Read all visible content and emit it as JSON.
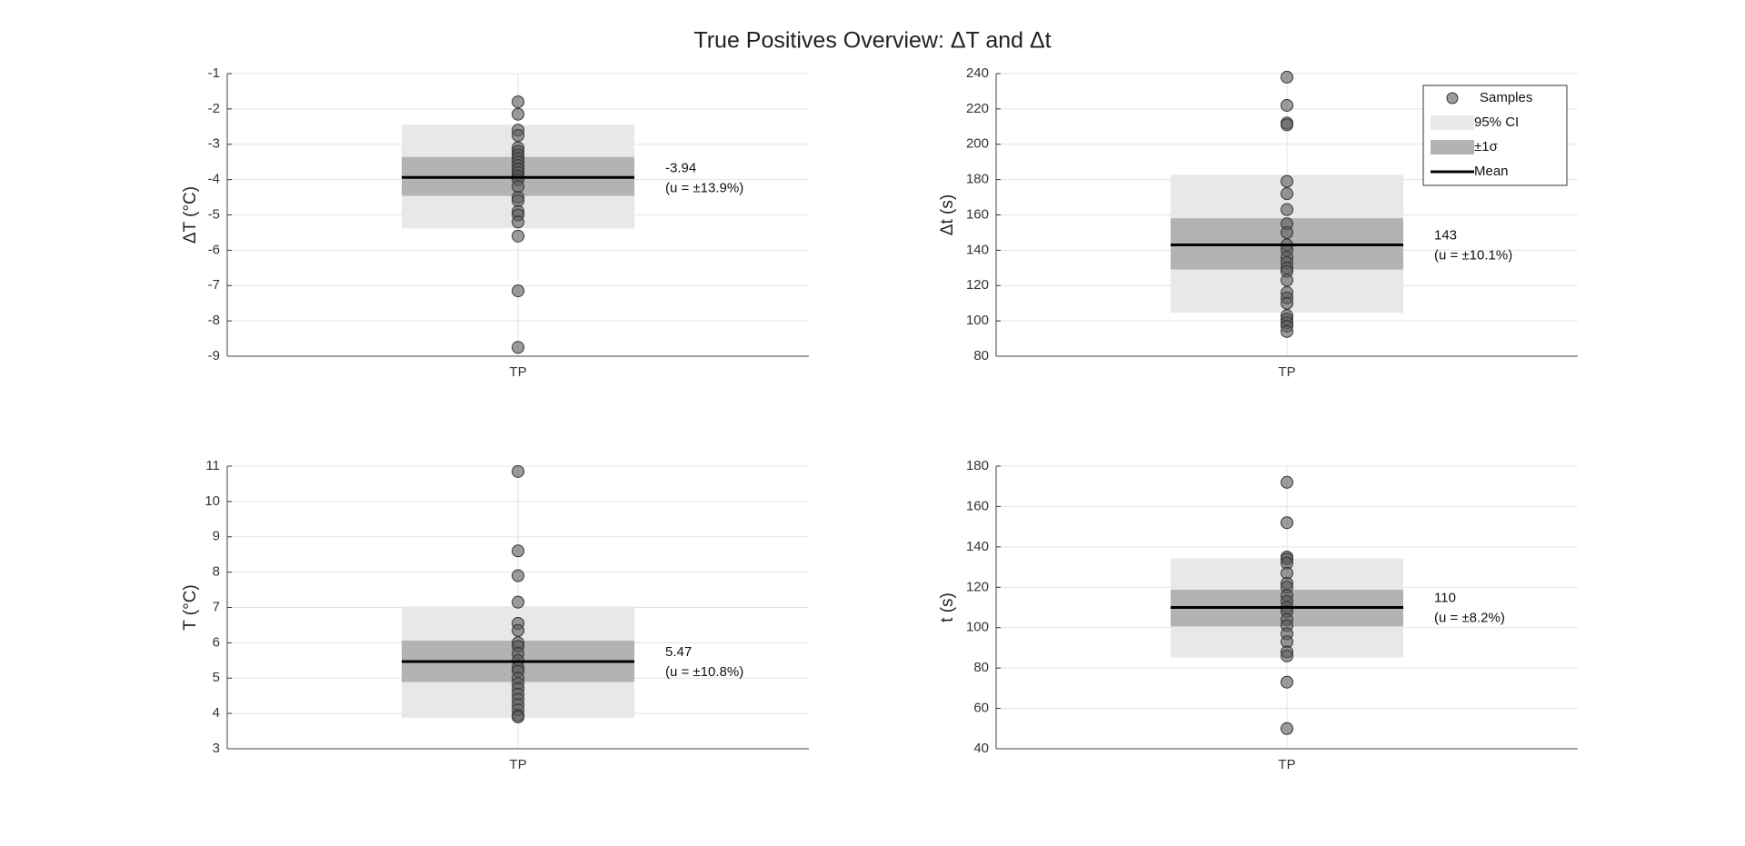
{
  "title": "True Positives Overview: ΔT and Δt",
  "chart_data": [
    {
      "type": "strip",
      "ylabel": "ΔT (°C)",
      "categories": [
        "TP"
      ],
      "values": [
        -1.8,
        -2.15,
        -2.6,
        -2.75,
        -3.1,
        -3.2,
        -3.3,
        -3.4,
        -3.5,
        -3.6,
        -3.7,
        -3.8,
        -3.9,
        -4.0,
        -4.2,
        -4.5,
        -4.6,
        -4.9,
        -5.0,
        -5.2,
        -5.6,
        -7.15,
        -8.75
      ],
      "ci": [
        -5.38,
        -2.45
      ],
      "sigma": [
        -4.46,
        -3.36
      ],
      "mean": -3.94,
      "annotation": "(u = ±13.9%)",
      "ylim": [
        -9,
        -1
      ],
      "yticks": [
        -9,
        -8,
        -7,
        -6,
        -5,
        -4,
        -3,
        -2,
        -1
      ],
      "grid": true,
      "sample_color": "#5a5a5a",
      "ci_color": "#e8e8e8",
      "sigma_color": "#b3b3b3",
      "mean_color": "#000000"
    },
    {
      "type": "strip",
      "ylabel": "Δt (s)",
      "categories": [
        "TP"
      ],
      "values": [
        238,
        222,
        212,
        211,
        179,
        172,
        163,
        155,
        150,
        143,
        140,
        136,
        133,
        130,
        128,
        123,
        116,
        113,
        110,
        103,
        101,
        99,
        97,
        94
      ],
      "ci": [
        104.6,
        182.7
      ],
      "sigma": [
        129.1,
        158.1
      ],
      "mean": 143,
      "annotation": "(u = ±10.1%)",
      "ylim": [
        80,
        240
      ],
      "yticks": [
        80,
        100,
        120,
        140,
        160,
        180,
        200,
        220,
        240
      ],
      "grid": true,
      "sample_color": "#5a5a5a",
      "ci_color": "#e8e8e8",
      "sigma_color": "#b3b3b3",
      "mean_color": "#000000",
      "legend": [
        "Samples",
        "95% CI",
        "±1σ",
        "Mean"
      ],
      "legend_position": "northeast"
    },
    {
      "type": "strip",
      "ylabel": "T (°C)",
      "categories": [
        "TP"
      ],
      "values": [
        10.85,
        8.6,
        7.9,
        7.15,
        6.55,
        6.35,
        6.0,
        5.9,
        5.7,
        5.5,
        5.3,
        5.2,
        5.0,
        4.85,
        4.7,
        4.55,
        4.4,
        4.25,
        4.1,
        3.95,
        3.9
      ],
      "ci": [
        3.88,
        7.03
      ],
      "sigma": [
        4.89,
        6.06
      ],
      "mean": 5.47,
      "annotation": "(u = ±10.8%)",
      "ylim": [
        3,
        11
      ],
      "yticks": [
        3,
        4,
        5,
        6,
        7,
        8,
        9,
        10,
        11
      ],
      "grid": true,
      "sample_color": "#5a5a5a",
      "ci_color": "#e8e8e8",
      "sigma_color": "#b3b3b3",
      "mean_color": "#000000"
    },
    {
      "type": "strip",
      "ylabel": "t (s)",
      "categories": [
        "TP"
      ],
      "values": [
        172,
        152,
        135,
        134,
        132,
        127,
        122,
        120,
        116,
        113,
        110,
        108,
        104,
        101,
        97,
        93,
        88,
        86,
        73,
        50
      ],
      "ci": [
        85.2,
        134.3
      ],
      "sigma": [
        100.6,
        118.8
      ],
      "mean": 110,
      "annotation": "(u = ±8.2%)",
      "ylim": [
        40,
        180
      ],
      "yticks": [
        40,
        60,
        80,
        100,
        120,
        140,
        160,
        180
      ],
      "grid": true,
      "sample_color": "#5a5a5a",
      "ci_color": "#e8e8e8",
      "sigma_color": "#b3b3b3",
      "mean_color": "#000000"
    }
  ]
}
